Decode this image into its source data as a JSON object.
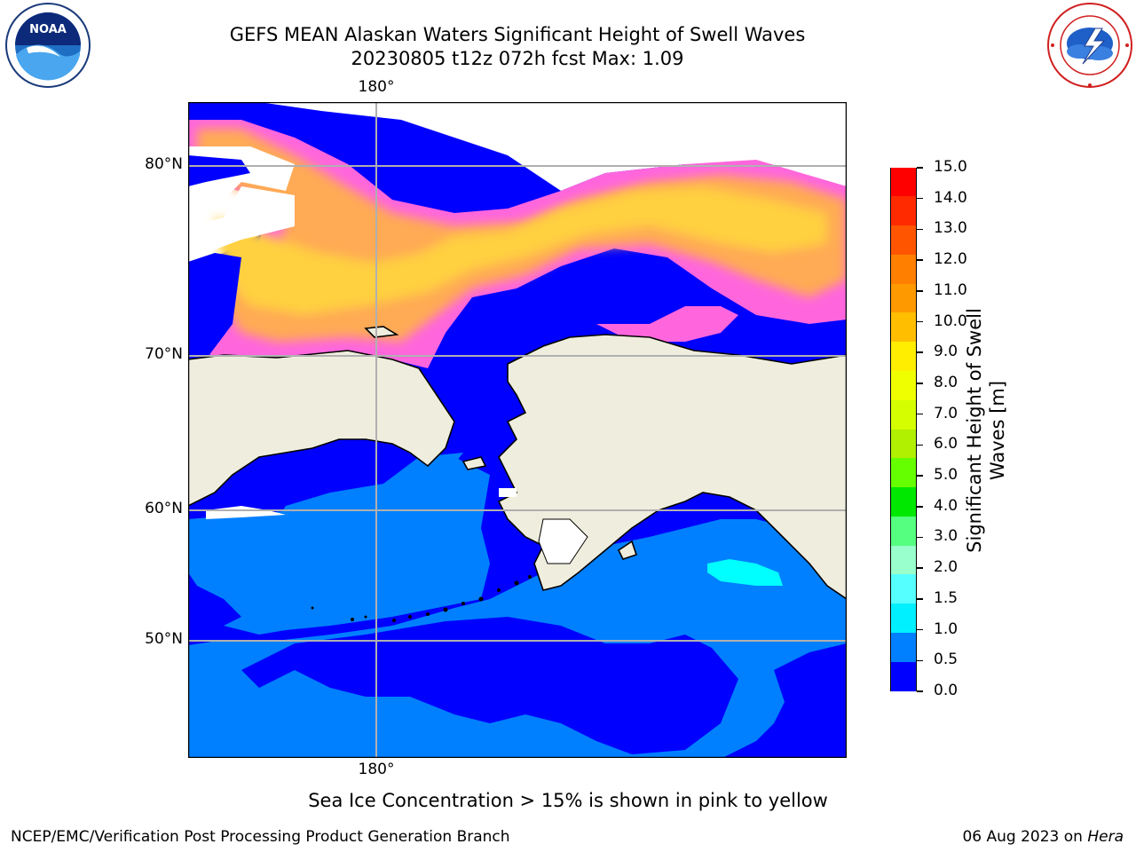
{
  "title_line1": "GEFS MEAN Alaskan Waters Significant Height of Swell Waves",
  "title_line2": "20230805 t12z 072h fcst   Max: 1.09",
  "lon_label_top": "180°",
  "lon_label_bottom": "180°",
  "lat_labels": [
    "80°N",
    "70°N",
    "60°N",
    "50°N"
  ],
  "colorbar": {
    "title": "Significant Height of Swell Waves [m]",
    "ticks": [
      "15.0",
      "14.0",
      "13.0",
      "12.0",
      "11.0",
      "10.0",
      "9.0",
      "8.0",
      "7.0",
      "6.0",
      "5.0",
      "4.0",
      "3.0",
      "2.0",
      "1.5",
      "1.0",
      "0.5",
      "0.0"
    ],
    "colors": [
      "#ff0000",
      "#ff2a00",
      "#ff5500",
      "#ff7f00",
      "#ff9900",
      "#ffbf00",
      "#ffee00",
      "#f0ff00",
      "#d5ff00",
      "#b0f000",
      "#66ff00",
      "#00e800",
      "#55ff7f",
      "#99ffcc",
      "#55ffff",
      "#00f0ff",
      "#0080ff",
      "#0000ff"
    ]
  },
  "subtitle": "Sea Ice Concentration > 15% is shown in pink to yellow",
  "footer_left": "NCEP/EMC/Verification Post Processing Product Generation Branch",
  "footer_right_prefix": "06 Aug 2023 on ",
  "footer_right_host": "Hera",
  "logo_left_text": "NOAA",
  "colors": {
    "deep_ocean": "#0000ff",
    "swell_low": "#0080ff",
    "swell_mid": "#00ffff",
    "land": "#efeddd",
    "ice_pink": "#ff66cc",
    "ice_orange": "#ffaa44",
    "ice_yellow": "#ffdd33"
  }
}
